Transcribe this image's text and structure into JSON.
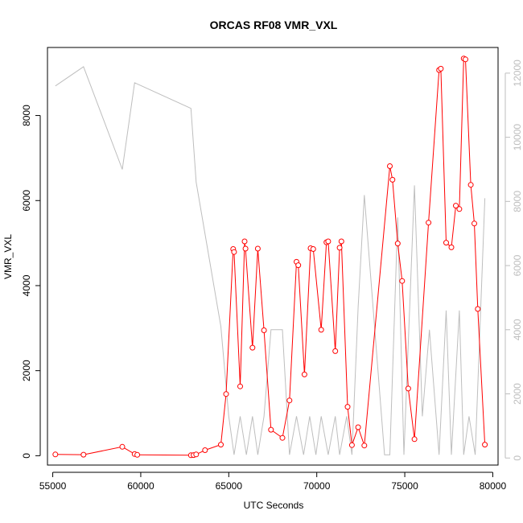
{
  "chart_data": {
    "type": "line",
    "title": "ORCAS RF08 VMR_VXL",
    "xlabel": "UTC Seconds",
    "ylabel": "VMR_VXL",
    "xlim": [
      54700,
      80300
    ],
    "ylim": [
      -220,
      9600
    ],
    "y2lim": [
      -220,
      12800
    ],
    "x_ticks": [
      55000,
      60000,
      65000,
      70000,
      75000,
      80000
    ],
    "y_ticks": [
      0,
      2000,
      4000,
      6000,
      8000
    ],
    "y2_ticks": [
      0,
      2000,
      4000,
      6000,
      8000,
      10000,
      12000
    ],
    "grid": false,
    "colors": {
      "primary": "#ff0000",
      "secondary": "#bebebe"
    },
    "series": [
      {
        "axis": "left",
        "style": "line+circle",
        "x": [
          55150,
          56750,
          58950,
          59650,
          59800,
          62850,
          63000,
          63150,
          63650,
          64550,
          64850,
          65250,
          65300,
          65650,
          65900,
          65950,
          66350,
          66650,
          67000,
          67400,
          68050,
          68450,
          68850,
          68950,
          69300,
          69650,
          69800,
          70250,
          70550,
          70650,
          71050,
          71300,
          71400,
          71750,
          72000,
          72350,
          72700,
          74150,
          74300,
          74600,
          74850,
          75200,
          75550,
          76350,
          76950,
          77050,
          77350,
          77650,
          77900,
          78100,
          78350,
          78450,
          78750,
          78950,
          79150,
          79550
        ],
        "y": [
          30,
          25,
          210,
          40,
          20,
          10,
          15,
          30,
          130,
          260,
          1450,
          4860,
          4790,
          1630,
          5040,
          4870,
          2540,
          4870,
          2950,
          610,
          420,
          1300,
          4560,
          4480,
          1910,
          4880,
          4860,
          2960,
          5020,
          5040,
          2460,
          4890,
          5040,
          1150,
          250,
          670,
          240,
          6810,
          6490,
          4990,
          4110,
          1580,
          390,
          5480,
          9070,
          9100,
          5010,
          4900,
          5880,
          5800,
          9340,
          9320,
          6370,
          5460,
          3450,
          260
        ]
      },
      {
        "axis": "right",
        "style": "line",
        "x": [
          55150,
          56750,
          58950,
          59650,
          62850,
          63150,
          64550,
          65000,
          65300,
          65650,
          66000,
          66350,
          66650,
          67000,
          67400,
          68050,
          68450,
          68850,
          69250,
          69600,
          69950,
          70250,
          70650,
          71050,
          71300,
          71700,
          72000,
          72350,
          72700,
          73850,
          74150,
          74600,
          74950,
          75550,
          76000,
          76400,
          76950,
          77350,
          77650,
          78100,
          78350,
          78650,
          79000,
          79550
        ],
        "y": [
          11600,
          12200,
          9000,
          11700,
          10900,
          8600,
          4100,
          1300,
          100,
          1300,
          100,
          1300,
          100,
          1300,
          4000,
          4000,
          100,
          1300,
          100,
          1300,
          100,
          1300,
          100,
          1300,
          100,
          1300,
          100,
          4700,
          8200,
          100,
          100,
          7500,
          100,
          8500,
          1300,
          4000,
          100,
          4600,
          100,
          4600,
          100,
          1300,
          100,
          8100
        ]
      }
    ]
  }
}
